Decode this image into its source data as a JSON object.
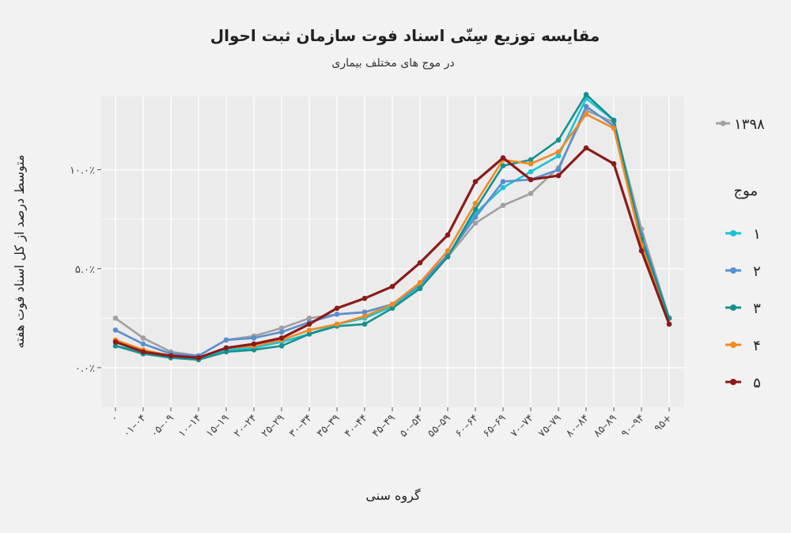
{
  "chart_data": {
    "type": "line",
    "title": "مقایسه توزیع سِنّی اسناد فوت سازمان ثبت احوال",
    "subtitle": "در موج های مختلف بیماری",
    "xlabel": "گروه سنی",
    "ylabel": "متوسط درصد از کل اسناد فوت هفته",
    "categories": [
      "۰",
      "۰۱–۰۴",
      "۰۵–۰۹",
      "۱۰–۱۴",
      "۱۵–۱۹",
      "۲۰–۲۴",
      "۲۵–۲۹",
      "۳۰–۳۴",
      "۳۵–۳۹",
      "۴۰–۴۴",
      "۴۵–۴۹",
      "۵۰–۵۴",
      "۵۵–۵۹",
      "۶۰–۶۴",
      "۶۵–۶۹",
      "۷۰–۷۴",
      "۷۵–۷۹",
      "۸۰–۸۴",
      "۸۵–۸۹",
      "۹۰–۹۴",
      "۹۵+"
    ],
    "ylim": [
      -0.2,
      1.37
    ],
    "y_ticks": [
      {
        "value": 0.0,
        "label": "۰.۰٪"
      },
      {
        "value": 0.5,
        "label": "۵.۰٪"
      },
      {
        "value": 1.0,
        "label": "۱۰.۰٪"
      }
    ],
    "grid": true,
    "legend": {
      "position": "right",
      "reference_label": "۱۳۹۸",
      "title": "موج"
    },
    "series": [
      {
        "name": "۱۳۹۸",
        "color": "#a0a0a0",
        "reference": true,
        "values": [
          0.25,
          0.15,
          0.08,
          0.06,
          0.14,
          0.16,
          0.2,
          0.25,
          0.27,
          0.28,
          0.32,
          0.4,
          0.56,
          0.73,
          0.82,
          0.88,
          1.01,
          1.3,
          1.24,
          0.7,
          0.25
        ]
      },
      {
        "name": "۱",
        "color": "#1bc3d4",
        "values": [
          0.11,
          0.08,
          0.05,
          0.05,
          0.09,
          0.1,
          0.13,
          0.17,
          0.22,
          0.25,
          0.31,
          0.41,
          0.56,
          0.78,
          0.91,
          0.99,
          1.07,
          1.36,
          1.25,
          0.66,
          0.25
        ]
      },
      {
        "name": "۲",
        "color": "#5a8fcf",
        "values": [
          0.19,
          0.12,
          0.07,
          0.06,
          0.14,
          0.15,
          0.18,
          0.23,
          0.27,
          0.28,
          0.32,
          0.42,
          0.57,
          0.76,
          0.94,
          0.95,
          1.0,
          1.32,
          1.22,
          0.67,
          0.25
        ]
      },
      {
        "name": "۳",
        "color": "#16918f",
        "values": [
          0.11,
          0.07,
          0.05,
          0.04,
          0.08,
          0.09,
          0.11,
          0.17,
          0.21,
          0.22,
          0.3,
          0.4,
          0.56,
          0.8,
          1.02,
          1.05,
          1.15,
          1.38,
          1.25,
          0.65,
          0.25
        ]
      },
      {
        "name": "۴",
        "color": "#f08a24",
        "values": [
          0.14,
          0.09,
          0.06,
          0.05,
          0.1,
          0.11,
          0.14,
          0.19,
          0.22,
          0.26,
          0.32,
          0.43,
          0.59,
          0.83,
          1.05,
          1.03,
          1.09,
          1.28,
          1.21,
          0.62,
          0.22
        ]
      },
      {
        "name": "۵",
        "color": "#8b1a1a",
        "values": [
          0.13,
          0.08,
          0.06,
          0.05,
          0.1,
          0.12,
          0.15,
          0.22,
          0.3,
          0.35,
          0.41,
          0.53,
          0.67,
          0.94,
          1.06,
          0.95,
          0.97,
          1.11,
          1.03,
          0.59,
          0.22
        ]
      }
    ]
  }
}
